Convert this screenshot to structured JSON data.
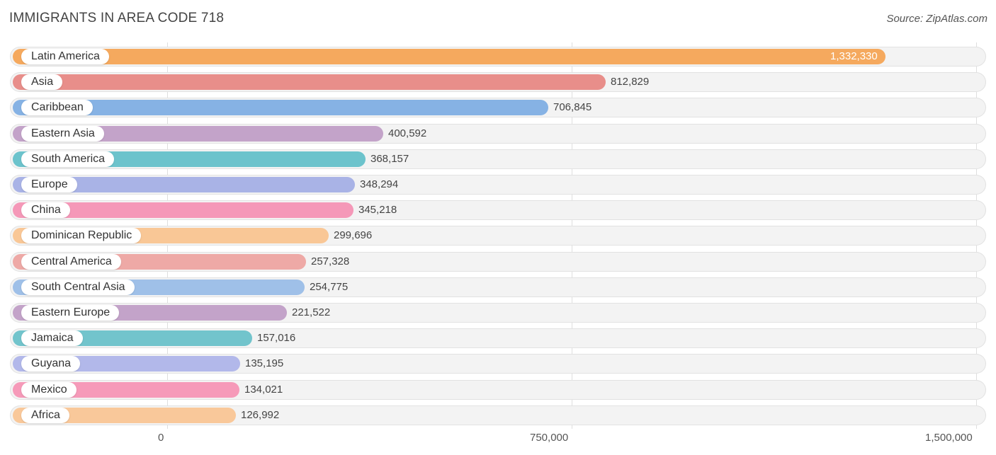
{
  "title": "IMMIGRANTS IN AREA CODE 718",
  "source": "Source: ZipAtlas.com",
  "chart_data": {
    "type": "bar",
    "orientation": "horizontal",
    "title": "IMMIGRANTS IN AREA CODE 718",
    "xlim": [
      0,
      1500000
    ],
    "ticks": [
      {
        "value": 0,
        "label": "0"
      },
      {
        "value": 750000,
        "label": "750,000"
      },
      {
        "value": 1500000,
        "label": "1,500,000"
      }
    ],
    "categories": [
      "Latin America",
      "Asia",
      "Caribbean",
      "Eastern Asia",
      "South America",
      "Europe",
      "China",
      "Dominican Republic",
      "Central America",
      "South Central Asia",
      "Eastern Europe",
      "Jamaica",
      "Guyana",
      "Mexico",
      "Africa"
    ],
    "values": [
      1332330,
      812829,
      706845,
      400592,
      368157,
      348294,
      345218,
      299696,
      257328,
      254775,
      221522,
      157016,
      135195,
      134021,
      126992
    ],
    "value_labels": [
      "1,332,330",
      "812,829",
      "706,845",
      "400,592",
      "368,157",
      "348,294",
      "345,218",
      "299,696",
      "257,328",
      "254,775",
      "221,522",
      "157,016",
      "135,195",
      "134,021",
      "126,992"
    ],
    "colors": [
      "#f5a95e",
      "#e88e8a",
      "#86b2e4",
      "#c3a3c9",
      "#6cc3cc",
      "#a9b3e6",
      "#f598b8",
      "#f9c796",
      "#eea9a6",
      "#9fc0e8",
      "#c3a3c9",
      "#72c4cc",
      "#b2b8ea",
      "#f69ab9",
      "#f9c89a"
    ]
  }
}
